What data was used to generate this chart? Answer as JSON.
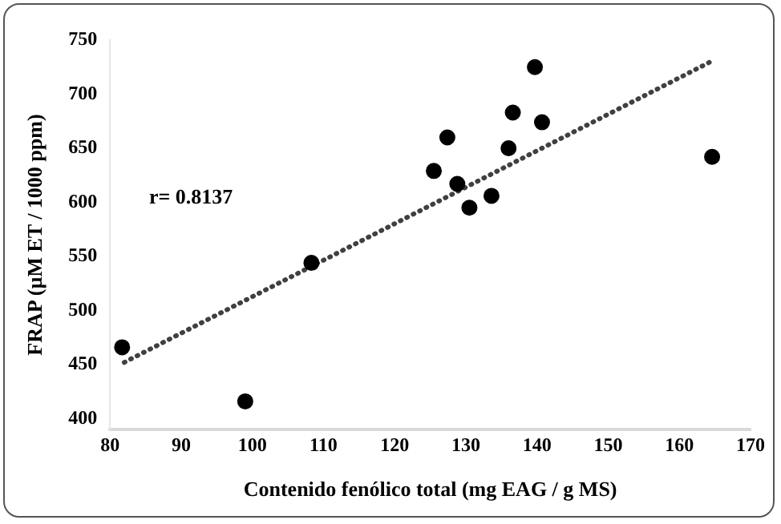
{
  "chart_data": {
    "type": "scatter",
    "xlabel": "Contenido fenólico total (mg EAG / g MS)",
    "ylabel": "FRAP (µM ET / 1000 ppm)",
    "xlim": [
      80,
      170
    ],
    "xticks": [
      80,
      90,
      100,
      110,
      120,
      130,
      140,
      150,
      160,
      170
    ],
    "ylim": [
      390,
      750
    ],
    "yticks": [
      400,
      450,
      500,
      550,
      600,
      650,
      700,
      750
    ],
    "grid": false,
    "legend": false,
    "marker": "circle",
    "annotations": [
      "r= 0.8137"
    ],
    "series": [
      {
        "color": "#000000",
        "x": [
          81.7,
          99,
          108.3,
          125.5,
          127.4,
          128.8,
          130.5,
          133.6,
          136,
          136.6,
          139.7,
          140.7,
          164.6
        ],
        "values": [
          466,
          416,
          544,
          629,
          660,
          617,
          595,
          606,
          650,
          683,
          725,
          674,
          642
        ]
      },
      {
        "type": "line",
        "color": "#404040",
        "line_style": "dotted",
        "marker": "none",
        "x": [
          82,
          165
        ],
        "values": [
          452,
          732
        ]
      }
    ]
  }
}
